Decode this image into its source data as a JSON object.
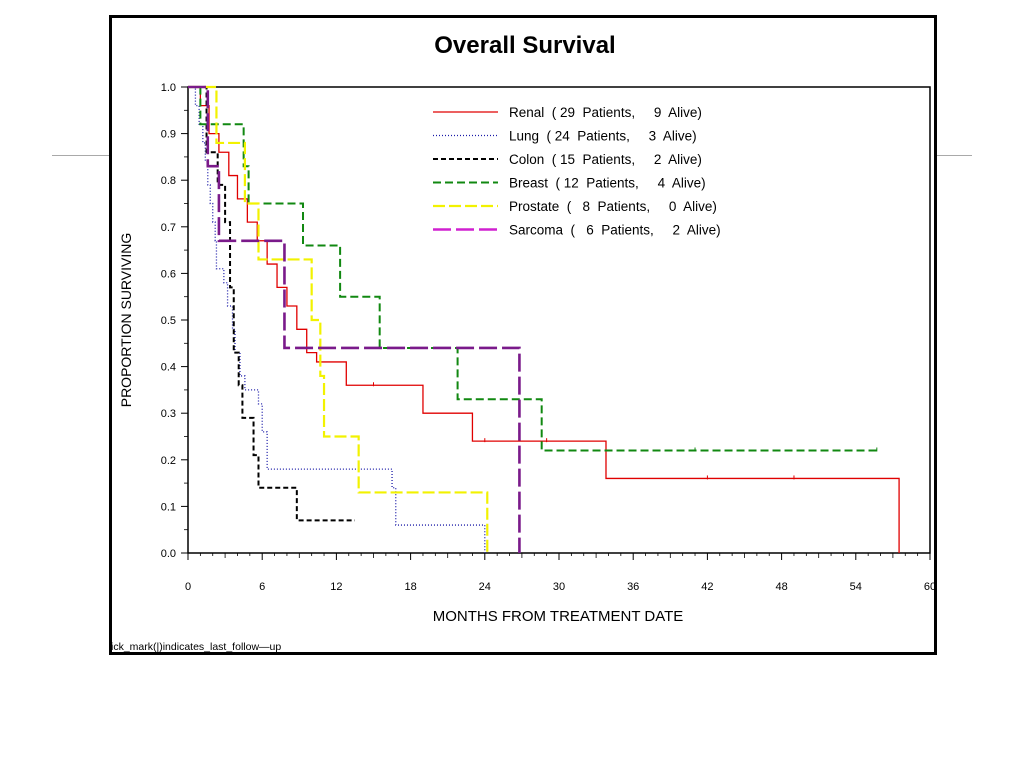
{
  "slide": {
    "decoration_color": "#a9a9a9"
  },
  "chart_data": {
    "type": "line",
    "subtype": "kaplan-meier step",
    "title": "Overall Survival",
    "xlabel": "MONTHS FROM TREATMENT DATE",
    "ylabel": "PROPORTION SURVIVING",
    "footnote": "ick_mark(|)indicates_last_follow—up",
    "xlim": [
      0,
      60
    ],
    "ylim": [
      0,
      1
    ],
    "xticks": [
      0,
      6,
      12,
      18,
      24,
      30,
      36,
      42,
      48,
      54,
      60
    ],
    "yticks": [
      "0.0",
      "0.1",
      "0.2",
      "0.3",
      "0.4",
      "0.5",
      "0.6",
      "0.7",
      "0.8",
      "0.9",
      "1.0"
    ],
    "legend_position": "top-right",
    "series": [
      {
        "name": "Renal",
        "legend_text": "Renal  ( 29  Patients,     9  Alive)",
        "color": "#e00000",
        "dash": "",
        "width": 1.3,
        "steps": [
          [
            0,
            1.0
          ],
          [
            1.0,
            0.96
          ],
          [
            1.7,
            0.9
          ],
          [
            2.5,
            0.86
          ],
          [
            3.3,
            0.81
          ],
          [
            4.0,
            0.76
          ],
          [
            4.8,
            0.71
          ],
          [
            5.6,
            0.67
          ],
          [
            6.4,
            0.62
          ],
          [
            7.2,
            0.57
          ],
          [
            8.0,
            0.53
          ],
          [
            8.8,
            0.48
          ],
          [
            9.6,
            0.43
          ],
          [
            10.4,
            0.41
          ],
          [
            12.8,
            0.36
          ],
          [
            19.0,
            0.3
          ],
          [
            23.0,
            0.24
          ],
          [
            33.8,
            0.16
          ],
          [
            57.5,
            0.0
          ]
        ],
        "end": 57.5,
        "censors": [
          [
            15,
            0.36
          ],
          [
            24,
            0.24
          ],
          [
            29,
            0.24
          ],
          [
            42,
            0.16
          ],
          [
            49,
            0.16
          ]
        ]
      },
      {
        "name": "Lung",
        "legend_text": "Lung  ( 24  Patients,     3  Alive)",
        "color": "#1a1aa8",
        "dash": "1,2",
        "width": 1.3,
        "steps": [
          [
            0,
            1.0
          ],
          [
            0.6,
            0.96
          ],
          [
            0.9,
            0.92
          ],
          [
            1.2,
            0.88
          ],
          [
            1.4,
            0.84
          ],
          [
            1.6,
            0.79
          ],
          [
            1.8,
            0.75
          ],
          [
            2.0,
            0.71
          ],
          [
            2.2,
            0.67
          ],
          [
            2.3,
            0.61
          ],
          [
            2.9,
            0.58
          ],
          [
            3.2,
            0.53
          ],
          [
            3.6,
            0.48
          ],
          [
            3.8,
            0.43
          ],
          [
            4.2,
            0.38
          ],
          [
            4.6,
            0.35
          ],
          [
            5.7,
            0.32
          ],
          [
            6.0,
            0.26
          ],
          [
            6.4,
            0.18
          ],
          [
            16.5,
            0.14
          ],
          [
            16.8,
            0.06
          ],
          [
            24,
            0.0
          ]
        ],
        "end": 24,
        "censors": []
      },
      {
        "name": "Colon",
        "legend_text": "Colon  ( 15  Patients,     2  Alive)",
        "color": "#000000",
        "dash": "5,3",
        "width": 2,
        "steps": [
          [
            0,
            1.0
          ],
          [
            1.5,
            0.86
          ],
          [
            2.4,
            0.79
          ],
          [
            3.0,
            0.71
          ],
          [
            3.4,
            0.57
          ],
          [
            3.7,
            0.43
          ],
          [
            4.1,
            0.36
          ],
          [
            4.4,
            0.29
          ],
          [
            5.3,
            0.21
          ],
          [
            5.7,
            0.14
          ],
          [
            8.8,
            0.07
          ]
        ],
        "end": 13.5,
        "censors": []
      },
      {
        "name": "Breast",
        "legend_text": "Breast  ( 12  Patients,     4  Alive)",
        "color": "#118811",
        "dash": "8,4",
        "width": 2,
        "steps": [
          [
            0,
            1.0
          ],
          [
            1.0,
            0.92
          ],
          [
            4.5,
            0.83
          ],
          [
            4.9,
            0.75
          ],
          [
            9.3,
            0.66
          ],
          [
            12.3,
            0.55
          ],
          [
            15.5,
            0.44
          ],
          [
            21.8,
            0.33
          ],
          [
            28.6,
            0.22
          ]
        ],
        "end": 55.7,
        "censors": [
          [
            41,
            0.22
          ],
          [
            55.7,
            0.22
          ]
        ]
      },
      {
        "name": "Prostate",
        "legend_text": "Prostate  (   8  Patients,     0  Alive)",
        "color": "#f2f200",
        "dash": "12,4",
        "width": 2.2,
        "steps": [
          [
            0,
            1.0
          ],
          [
            2.3,
            0.88
          ],
          [
            4.6,
            0.75
          ],
          [
            5.7,
            0.63
          ],
          [
            10.0,
            0.5
          ],
          [
            10.7,
            0.38
          ],
          [
            11.0,
            0.25
          ],
          [
            13.8,
            0.13
          ],
          [
            24.2,
            0.0
          ]
        ],
        "end": 24.2,
        "censors": []
      },
      {
        "name": "Sarcoma",
        "legend_text": "Sarcoma  (   6  Patients,     2  Alive)",
        "color": "#7a1a8a",
        "legend_color": "#d020d0",
        "dash": "18,5",
        "width": 2.6,
        "steps": [
          [
            0,
            1.0
          ],
          [
            1.6,
            0.83
          ],
          [
            2.5,
            0.67
          ],
          [
            7.8,
            0.44
          ],
          [
            26.8,
            0.0
          ]
        ],
        "end": 26.8,
        "censors": []
      }
    ]
  }
}
